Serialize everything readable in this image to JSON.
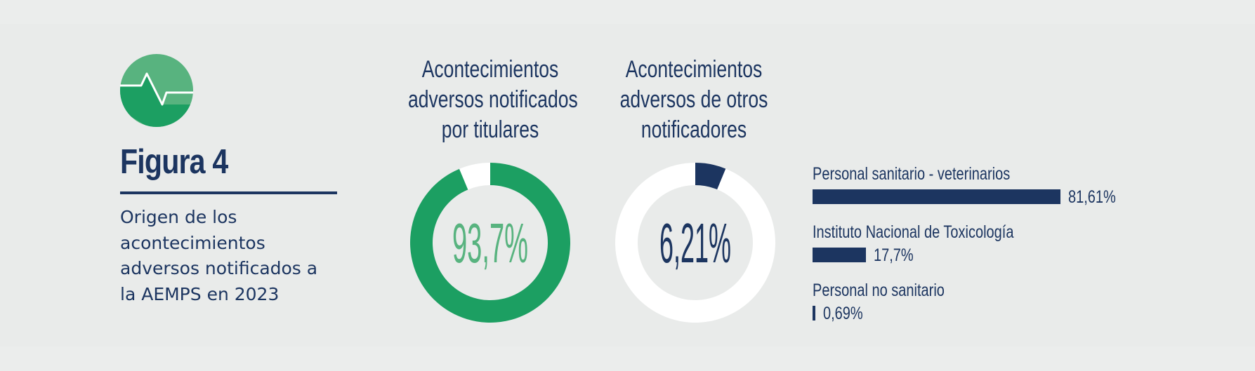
{
  "figure": {
    "title": "Figura 4",
    "subtitle": "Origen de los acontecimientos adversos notificados a la AEMPS en 2023"
  },
  "colors": {
    "navy": "#1c3560",
    "green": "#1c9f62",
    "light_green": "#58b37f",
    "white": "#ffffff"
  },
  "icon": {
    "name": "heartbeat-icon"
  },
  "chart_data": [
    {
      "type": "pie",
      "title_lines": [
        "Acontecimientos",
        "adversos notificados",
        "por titulares"
      ],
      "values": [
        93.7,
        6.3
      ],
      "slice_colors": [
        "#1c9f62",
        "#ffffff"
      ],
      "center_label": "93,7%",
      "center_color": "#58b37f"
    },
    {
      "type": "pie",
      "title_lines": [
        "Acontecimientos",
        "adversos de otros",
        "notificadores"
      ],
      "values": [
        6.21,
        93.79
      ],
      "slice_colors": [
        "#1c3560",
        "#ffffff"
      ],
      "center_label": "6,21%",
      "center_color": "#1c3560"
    },
    {
      "type": "bar",
      "orientation": "horizontal",
      "categories": [
        "Personal sanitario - veterinarios",
        "Instituto Nacional de Toxicología",
        "Personal no sanitario"
      ],
      "values": [
        81.61,
        17.7,
        0.69
      ],
      "value_labels": [
        "81,61%",
        "17,7%",
        "0,69%"
      ],
      "xlim": [
        0,
        100
      ]
    }
  ]
}
